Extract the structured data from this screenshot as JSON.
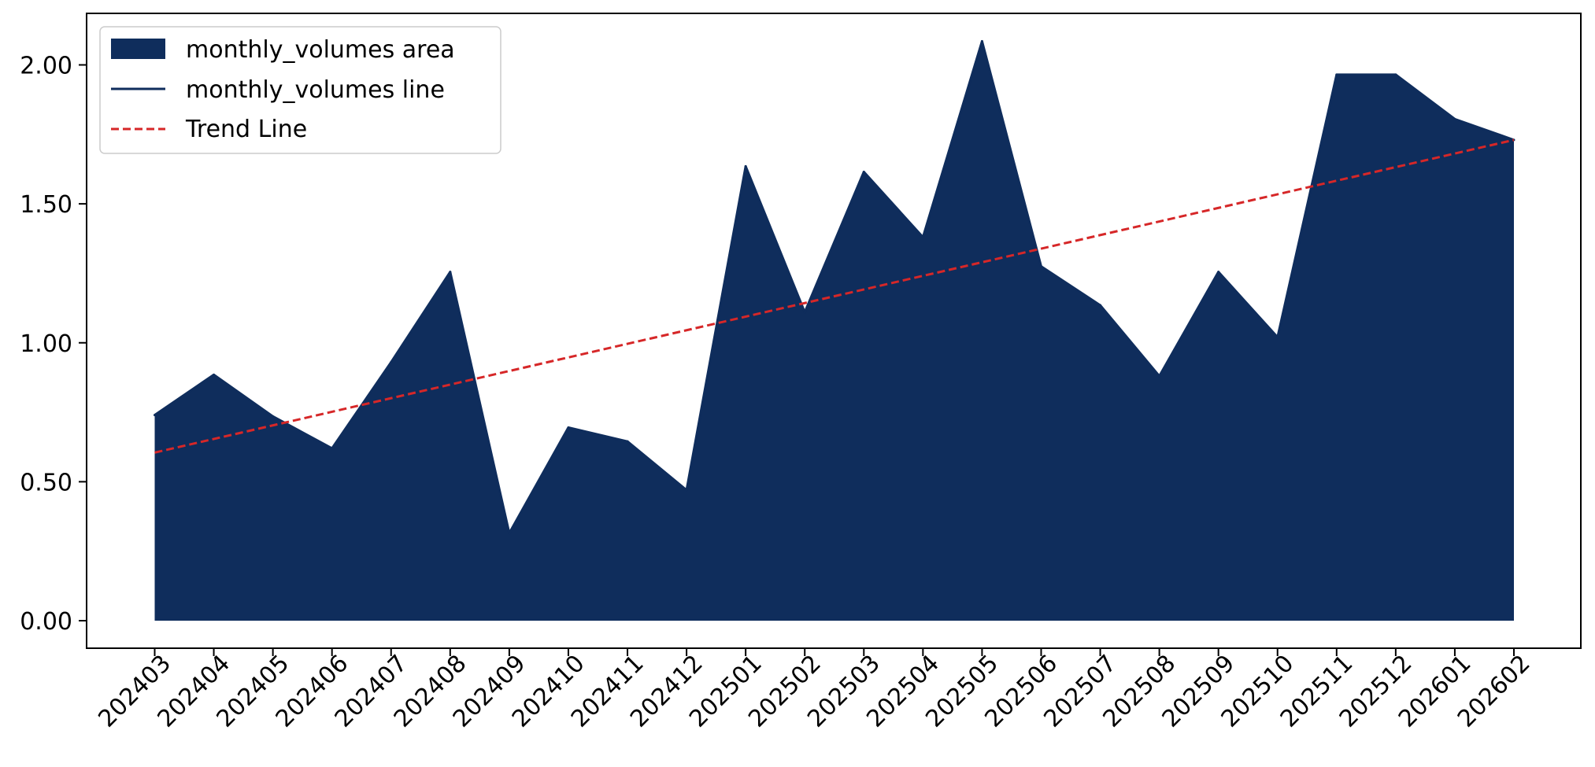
{
  "chart_data": {
    "type": "area",
    "title": "",
    "xlabel": "",
    "ylabel": "",
    "categories": [
      "202403",
      "202404",
      "202405",
      "202406",
      "202407",
      "202408",
      "202409",
      "202410",
      "202411",
      "202412",
      "202501",
      "202502",
      "202503",
      "202504",
      "202505",
      "202506",
      "202507",
      "202508",
      "202509",
      "202510",
      "202511",
      "202512",
      "202601",
      "202602"
    ],
    "series": [
      {
        "name": "monthly_volumes area",
        "kind": "area",
        "color": "#0f2d5c",
        "values": [
          0.74,
          0.885,
          0.735,
          0.62,
          0.93,
          1.255,
          0.315,
          0.695,
          0.645,
          0.47,
          1.635,
          1.11,
          1.615,
          1.38,
          2.085,
          1.275,
          1.135,
          0.88,
          1.255,
          1.02,
          1.965,
          1.965,
          1.805,
          1.73
        ]
      },
      {
        "name": "monthly_volumes line",
        "kind": "line",
        "color": "#0f2d5c",
        "values": [
          0.74,
          0.885,
          0.735,
          0.62,
          0.93,
          1.255,
          0.315,
          0.695,
          0.645,
          0.47,
          1.635,
          1.11,
          1.615,
          1.38,
          2.085,
          1.275,
          1.135,
          0.88,
          1.255,
          1.02,
          1.965,
          1.965,
          1.805,
          1.73
        ]
      },
      {
        "name": "Trend Line",
        "kind": "trend",
        "color": "#d62728",
        "start": 0.605,
        "end": 1.73
      }
    ],
    "yticks": [
      "0.00",
      "0.50",
      "1.00",
      "1.50",
      "2.00"
    ],
    "ylim": [
      -0.1,
      2.18
    ],
    "grid": false,
    "legend_position": "upper-left"
  }
}
